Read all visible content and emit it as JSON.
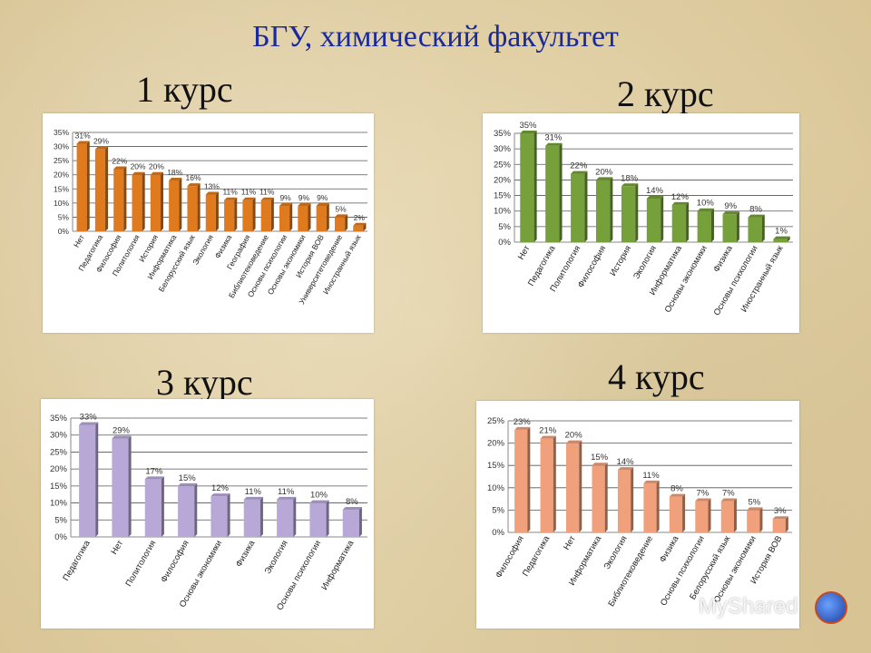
{
  "title": "БГУ, химический факультет",
  "courses": [
    "1 курс",
    "2 курс",
    "3 курс",
    "4 курс"
  ],
  "watermark": "MyShared",
  "colors": {
    "c1": "#e07a1e",
    "c2": "#76a03a",
    "c3": "#b8a8d8",
    "c4": "#f0a07a"
  },
  "chart_data": [
    {
      "type": "bar",
      "title": "1 курс",
      "categories": [
        "Нет",
        "Педагогика",
        "Философия",
        "Политология",
        "История",
        "Информатика",
        "Белорусский язык",
        "Экология",
        "Физика",
        "География",
        "Библиотековедение",
        "Основы психологии",
        "Основы экономики",
        "История ВОВ",
        "Университетоведение",
        "Иностранный язык"
      ],
      "values": [
        31,
        29,
        22,
        20,
        20,
        18,
        16,
        13,
        11,
        11,
        11,
        9,
        9,
        9,
        5,
        2
      ],
      "labels": [
        "31%",
        "29%",
        "22%",
        "20%",
        "20%",
        "18%",
        "16%",
        "13%",
        "11%",
        "11%",
        "11%",
        "9%",
        "9%",
        "9%",
        "5%",
        "2%"
      ],
      "yticks": [
        "0%",
        "5%",
        "10%",
        "15%",
        "20%",
        "25%",
        "30%",
        "35%"
      ],
      "ylim": [
        0,
        35
      ],
      "grid": true,
      "color": "#e07a1e"
    },
    {
      "type": "bar",
      "title": "2 курс",
      "categories": [
        "Нет",
        "Педагогика",
        "Политология",
        "Философия",
        "История",
        "Экология",
        "Информатика",
        "Основы экономики",
        "Физика",
        "Основы психологии",
        "Иностранный язык"
      ],
      "values": [
        35,
        31,
        22,
        20,
        18,
        14,
        12,
        10,
        9,
        8,
        1
      ],
      "labels": [
        "35%",
        "31%",
        "22%",
        "20%",
        "18%",
        "14%",
        "12%",
        "10%",
        "9%",
        "8%",
        "1%"
      ],
      "yticks": [
        "0%",
        "5%",
        "10%",
        "15%",
        "20%",
        "25%",
        "30%",
        "35%"
      ],
      "ylim": [
        0,
        35
      ],
      "grid": true,
      "color": "#76a03a"
    },
    {
      "type": "bar",
      "title": "3 курс",
      "categories": [
        "Педагогика",
        "Нет",
        "Политология",
        "Философия",
        "Основы экономики",
        "Физика",
        "Экология",
        "Основы психологии",
        "Информатика"
      ],
      "values": [
        33,
        29,
        17,
        15,
        12,
        11,
        11,
        10,
        8
      ],
      "labels": [
        "33%",
        "29%",
        "17%",
        "15%",
        "12%",
        "11%",
        "11%",
        "10%",
        "8%"
      ],
      "yticks": [
        "0%",
        "5%",
        "10%",
        "15%",
        "20%",
        "25%",
        "30%",
        "35%"
      ],
      "ylim": [
        0,
        35
      ],
      "grid": true,
      "color": "#b8a8d8"
    },
    {
      "type": "bar",
      "title": "4 курс",
      "categories": [
        "Философия",
        "Педагогика",
        "Нет",
        "Информатика",
        "Экология",
        "Библиотековедение",
        "Физика",
        "Основы психологии",
        "Белорусский язык",
        "Основы экономики",
        "История ВОВ"
      ],
      "values": [
        23,
        21,
        20,
        15,
        14,
        11,
        8,
        7,
        7,
        5,
        3
      ],
      "labels": [
        "23%",
        "21%",
        "20%",
        "15%",
        "14%",
        "11%",
        "8%",
        "7%",
        "7%",
        "5%",
        "3%"
      ],
      "yticks": [
        "0%",
        "5%",
        "10%",
        "15%",
        "20%",
        "25%"
      ],
      "ylim": [
        0,
        25
      ],
      "grid": true,
      "color": "#f0a07a"
    }
  ]
}
